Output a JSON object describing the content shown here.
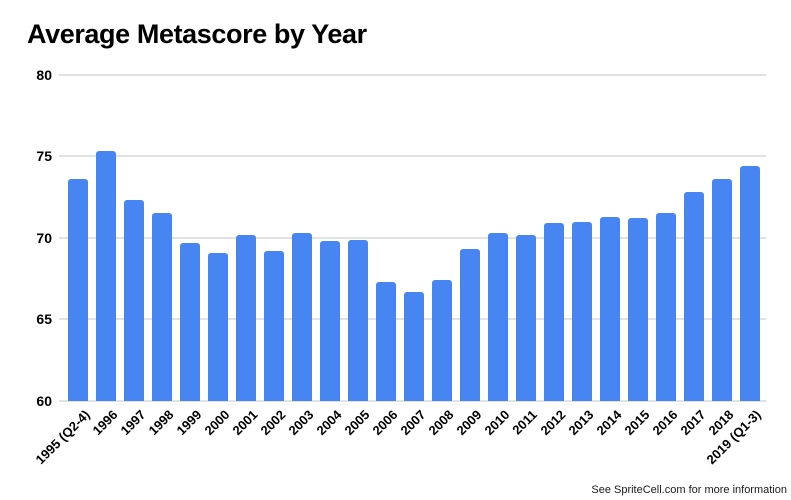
{
  "header": {
    "title": "Average Metascore by Year"
  },
  "footer": {
    "credit": "See SpriteCell.com for more information"
  },
  "colors": {
    "bar": "#4786f2",
    "gridline": "#e2e2e2",
    "text": "#000000",
    "footer_text": "#1a1a1a",
    "background": "#ffffff"
  },
  "chart_data": {
    "type": "bar",
    "title": "Average Metascore by Year",
    "categories": [
      "1995 (Q2-4)",
      "1996",
      "1997",
      "1998",
      "1999",
      "2000",
      "2001",
      "2002",
      "2003",
      "2004",
      "2005",
      "2006",
      "2007",
      "2008",
      "2009",
      "2010",
      "2011",
      "2012",
      "2013",
      "2014",
      "2015",
      "2016",
      "2017",
      "2018",
      "2019 (Q1-3)"
    ],
    "values": [
      73.6,
      75.3,
      72.3,
      71.5,
      69.7,
      69.1,
      70.2,
      69.2,
      70.3,
      69.8,
      69.9,
      67.3,
      66.7,
      67.4,
      69.3,
      70.3,
      70.2,
      70.9,
      71.0,
      71.3,
      71.2,
      71.5,
      72.8,
      73.6,
      74.4
    ],
    "xlabel": "",
    "ylabel": "",
    "ylim": [
      60,
      80
    ],
    "yticks": [
      60,
      65,
      70,
      75,
      80
    ],
    "grid": true,
    "legend": false,
    "x_tick_rotation_deg": 45
  }
}
